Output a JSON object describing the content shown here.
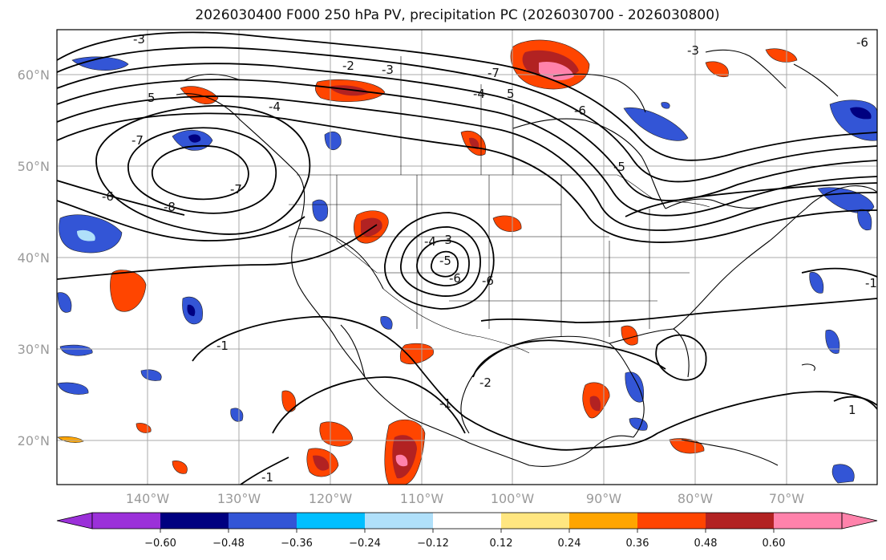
{
  "title": "2026030400 F000 250 hPa PV, precipitation PC (2026030700 - 2026030800)",
  "map": {
    "lat_labels": [
      "60°N",
      "50°N",
      "40°N",
      "30°N",
      "20°N"
    ],
    "lon_labels": [
      "140°W",
      "130°W",
      "120°W",
      "110°W",
      "100°W",
      "90°W",
      "80°W",
      "70°W"
    ],
    "contour_labels": [
      "-3",
      "-2",
      "-3",
      "-4",
      "5",
      "5",
      "-4",
      "-7",
      "-7",
      "-8",
      "-6",
      "-7",
      "-6",
      "-5",
      "-4",
      "-3",
      "-6",
      "-5",
      "-6",
      "-1",
      "-1",
      "-2",
      "-1",
      "-3",
      "-1",
      "1",
      "-6"
    ]
  },
  "colorbar": {
    "ticks": [
      "−0.60",
      "−0.48",
      "−0.36",
      "−0.24",
      "−0.12",
      "0.12",
      "0.24",
      "0.36",
      "0.48",
      "0.60"
    ],
    "colors": [
      "#9b30d9",
      "#000080",
      "#3355d6",
      "#00bfff",
      "#b0e0fa",
      "#ffffff",
      "#ffe680",
      "#ffa500",
      "#ff4500",
      "#b22222",
      "#ff82ab"
    ]
  }
}
